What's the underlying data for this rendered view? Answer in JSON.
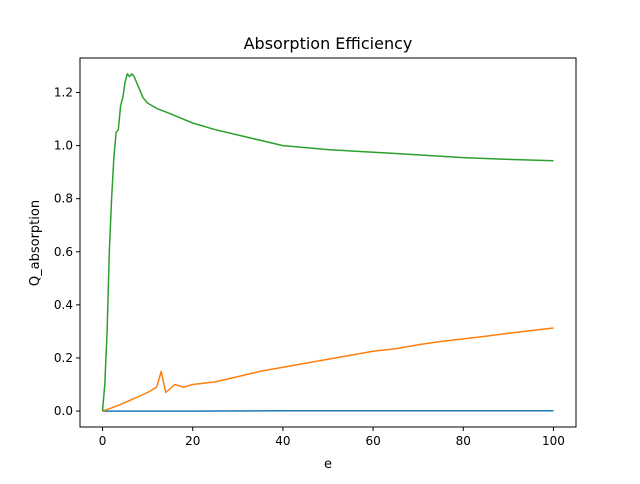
{
  "chart_data": {
    "type": "line",
    "title": "Absorption Efficiency",
    "xlabel": "e",
    "ylabel": "Q_absorption",
    "xlim": [
      -5,
      105
    ],
    "ylim": [
      -0.06,
      1.33
    ],
    "xticks": [
      0,
      20,
      40,
      60,
      80,
      100
    ],
    "xtick_labels": [
      "0",
      "20",
      "40",
      "60",
      "80",
      "100"
    ],
    "yticks": [
      0.0,
      0.2,
      0.4,
      0.6,
      0.8,
      1.0,
      1.2
    ],
    "ytick_labels": [
      "0.0",
      "0.2",
      "0.4",
      "0.6",
      "0.8",
      "1.0",
      "1.2"
    ],
    "grid": false,
    "legend": "none",
    "series": [
      {
        "color": "#1f77b4",
        "x": [
          0,
          20,
          40,
          60,
          80,
          100
        ],
        "y": [
          0.0,
          0.0,
          0.001,
          0.001,
          0.001,
          0.001
        ]
      },
      {
        "color": "#ff7f0e",
        "x": [
          0,
          2,
          4,
          6,
          8,
          10,
          12,
          13,
          14,
          16,
          18,
          20,
          25,
          30,
          35,
          40,
          45,
          50,
          55,
          60,
          65,
          70,
          75,
          80,
          85,
          90,
          95,
          100
        ],
        "y": [
          0.0,
          0.012,
          0.025,
          0.04,
          0.055,
          0.07,
          0.09,
          0.15,
          0.07,
          0.1,
          0.09,
          0.1,
          0.11,
          0.13,
          0.15,
          0.165,
          0.18,
          0.195,
          0.21,
          0.225,
          0.235,
          0.25,
          0.262,
          0.272,
          0.282,
          0.293,
          0.303,
          0.313
        ]
      },
      {
        "color": "#2ca02c",
        "x": [
          0,
          0.5,
          1,
          1.5,
          2,
          2.5,
          3,
          3.5,
          4,
          4.5,
          5,
          5.5,
          6,
          6.5,
          7,
          8,
          9,
          10,
          12,
          15,
          20,
          25,
          30,
          40,
          50,
          60,
          70,
          80,
          90,
          100
        ],
        "y": [
          0.0,
          0.1,
          0.3,
          0.6,
          0.8,
          0.95,
          1.05,
          1.06,
          1.15,
          1.18,
          1.24,
          1.27,
          1.26,
          1.27,
          1.26,
          1.22,
          1.18,
          1.16,
          1.14,
          1.12,
          1.085,
          1.06,
          1.04,
          1.0,
          0.985,
          0.975,
          0.965,
          0.955,
          0.948,
          0.943
        ]
      }
    ]
  }
}
